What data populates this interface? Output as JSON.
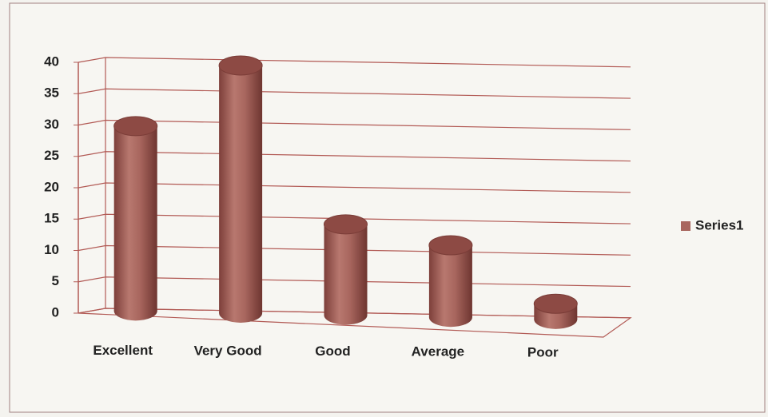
{
  "chart_data": {
    "type": "bar3d",
    "categories": [
      "Excellent",
      "Very Good",
      "Good",
      "Average",
      "Poor"
    ],
    "series": [
      {
        "name": "Series1",
        "color": "#a8665e",
        "values": [
          30,
          40,
          15,
          12,
          3
        ]
      }
    ],
    "ylim": [
      0,
      40
    ],
    "yticks": [
      0,
      5,
      10,
      15,
      20,
      25,
      30,
      35,
      40
    ],
    "grid": true,
    "legend": "right"
  }
}
